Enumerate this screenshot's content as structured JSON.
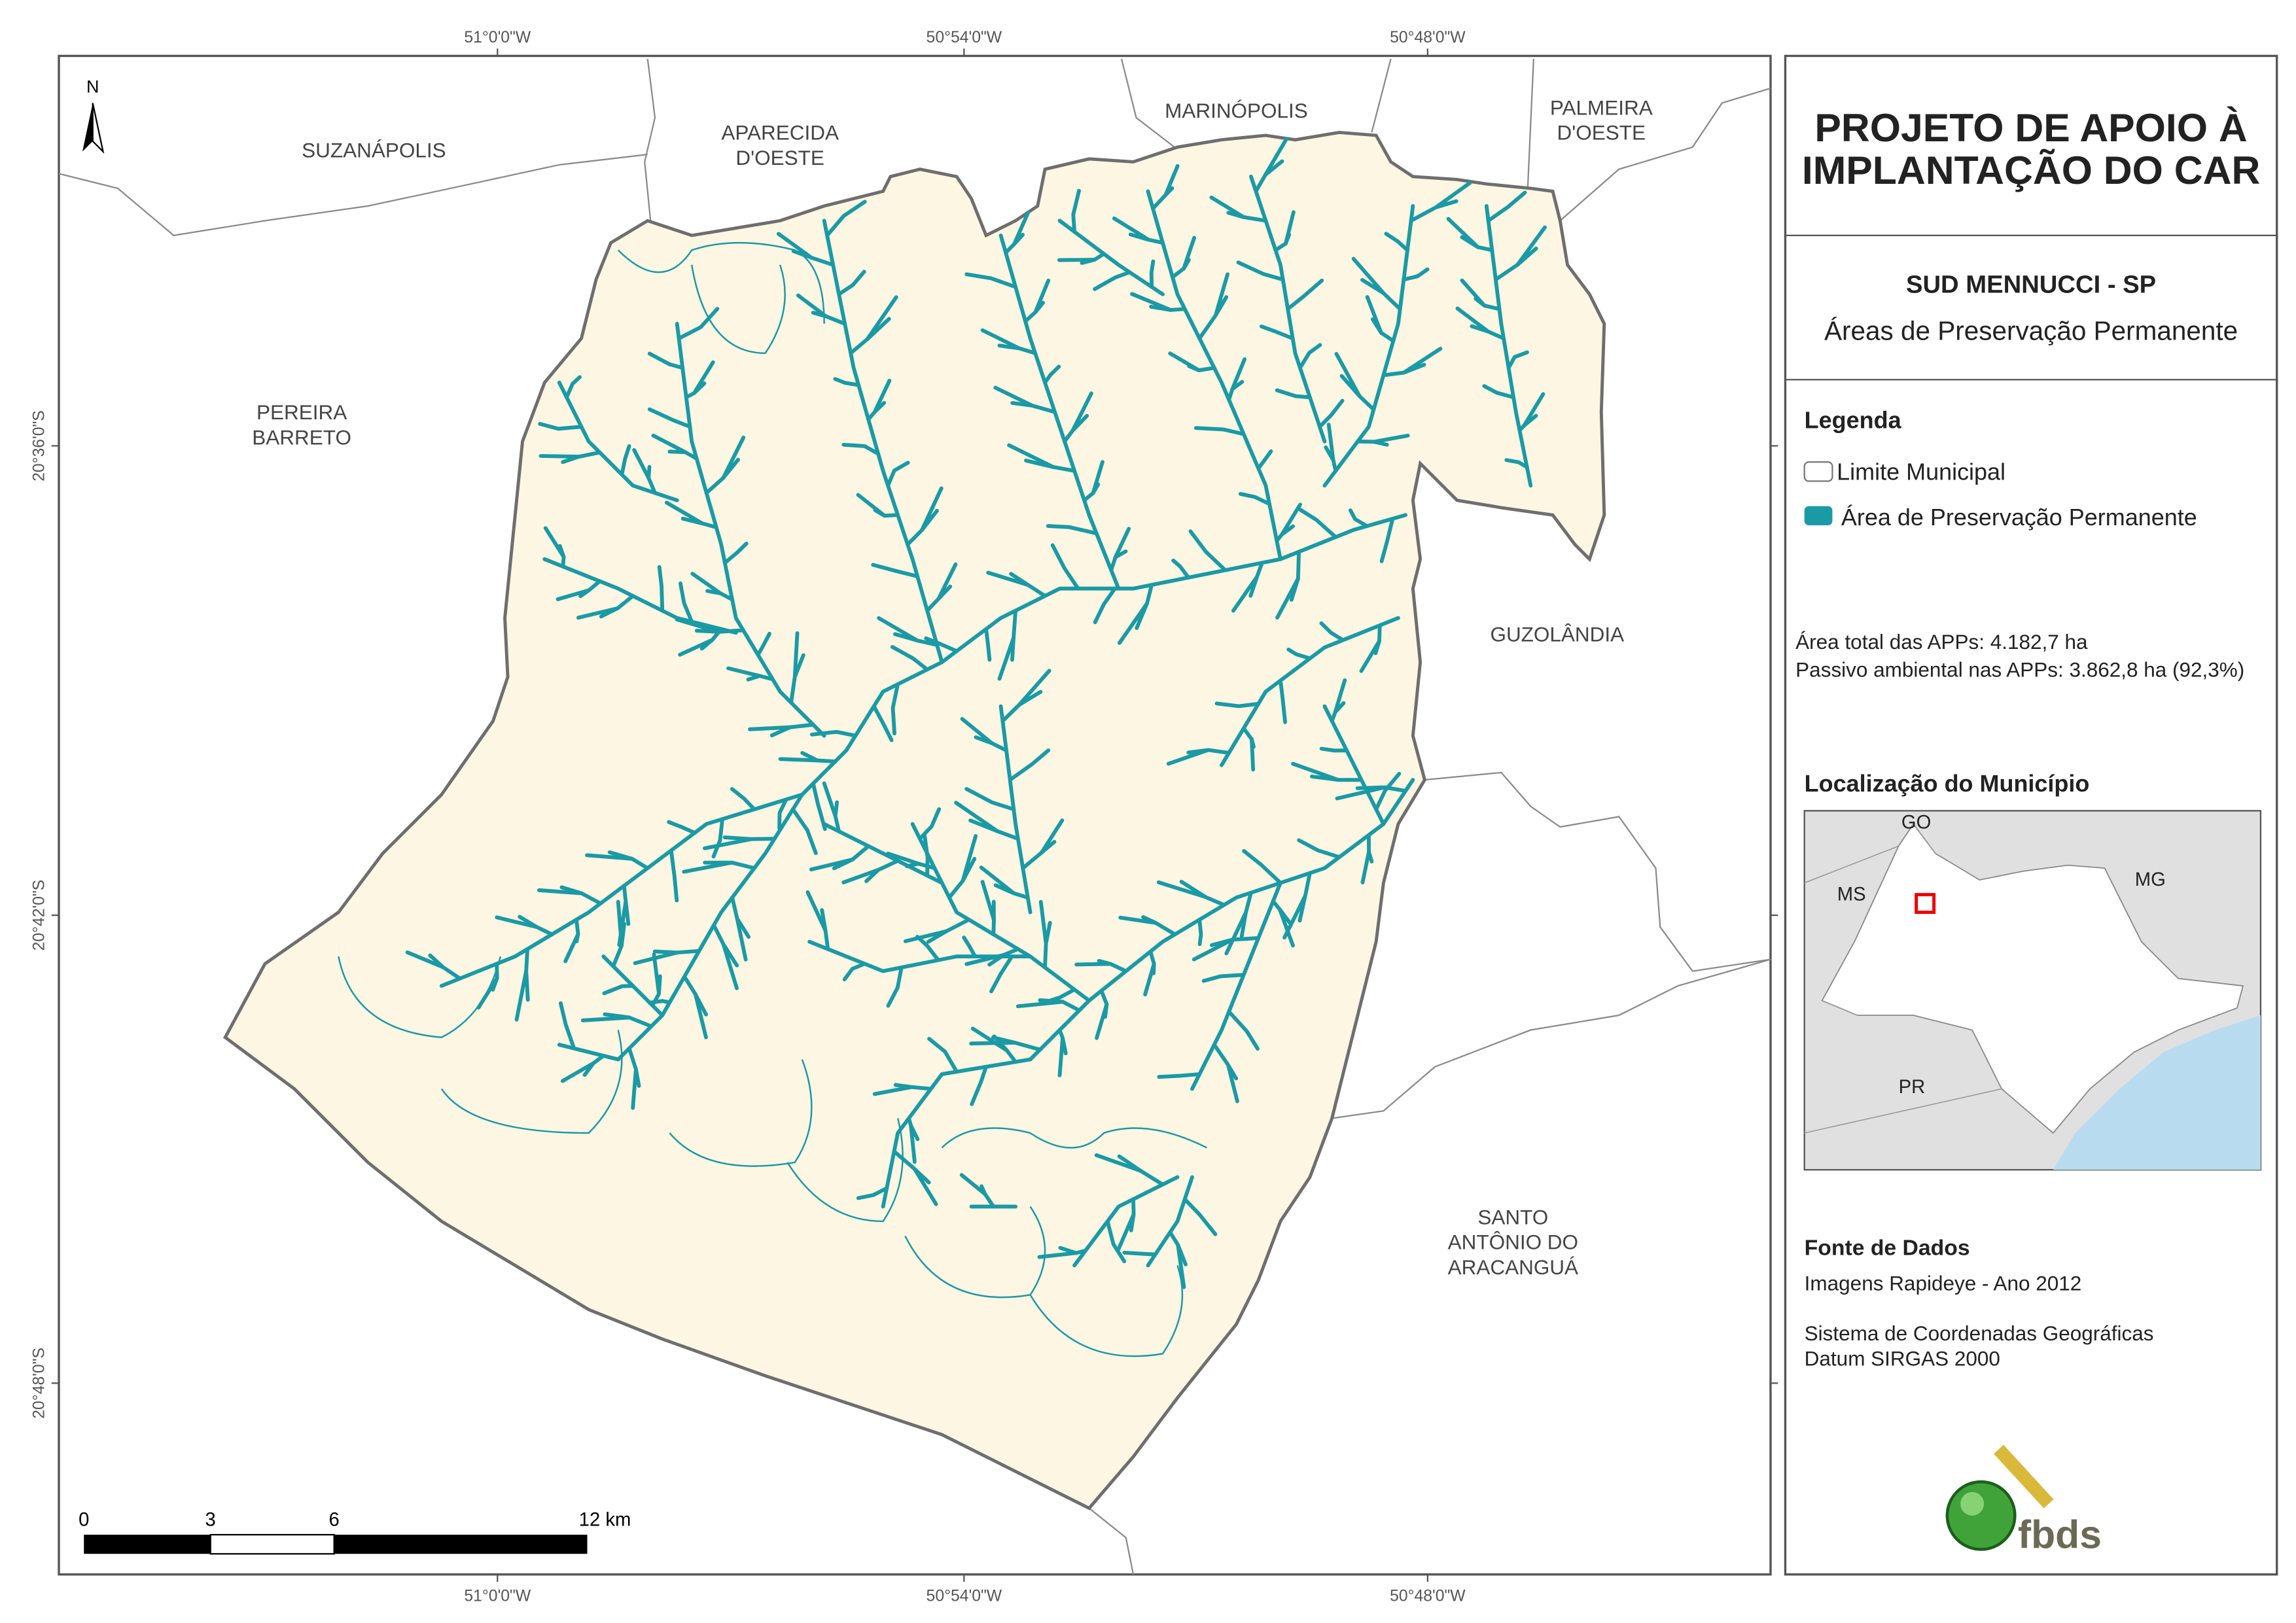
{
  "map": {
    "coordinates_top": [
      "51°0'0\"W",
      "50°54'0\"W",
      "50°48'0\"W"
    ],
    "coordinates_bottom": [
      "51°0'0\"W",
      "50°54'0\"W",
      "50°48'0\"W"
    ],
    "coordinates_left": [
      "20°36'0\"S",
      "20°42'0\"S",
      "20°48'0\"S"
    ],
    "north": "N",
    "neighbors": [
      [
        "SUZANÁPOLIS"
      ],
      [
        "APARECIDA",
        "D'OESTE"
      ],
      [
        "MARINÓPOLIS"
      ],
      [
        "PALMEIRA",
        "D'OESTE"
      ],
      [
        "PEREIRA",
        "BARRETO"
      ],
      [
        "GUZOLÂNDIA"
      ],
      [
        "SANTO",
        "ANTÔNIO DO",
        "ARACANGUÁ"
      ]
    ],
    "scale_bar": [
      "0",
      "3",
      "6",
      "12 km"
    ]
  },
  "panel": {
    "title": [
      "PROJETO DE APOIO À",
      "IMPLANTAÇÃO DO CAR"
    ],
    "municipality": "SUD MENNUCCI - SP",
    "subtitle": "Áreas de Preservação Permanente",
    "legend_title": "Legenda",
    "legend": [
      "Limite Municipal",
      "Área de Preservação Permanente"
    ],
    "stats": [
      "Área total das APPs: 4.182,7 ha",
      "Passivo ambiental nas APPs: 3.862,8 ha (92,3%)"
    ],
    "location_title": "Localização do Município",
    "location_labels": [
      "GO",
      "MS",
      "MG",
      "PR"
    ],
    "source_title": "Fonte de Dados",
    "source": [
      "Imagens Rapideye - Ano 2012",
      "Sistema de Coordenadas Geográficas",
      "Datum SIRGAS 2000"
    ],
    "logo": "fbds"
  }
}
